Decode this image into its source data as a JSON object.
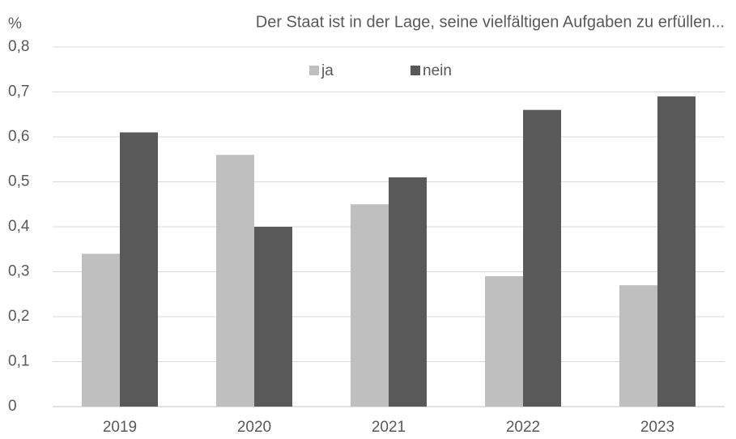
{
  "chart_data": {
    "type": "bar",
    "title": "Der Staat ist in der Lage, seine vielfältigen Aufgaben zu erfüllen...",
    "y_label": "%",
    "categories": [
      "2019",
      "2020",
      "2021",
      "2022",
      "2023"
    ],
    "series": [
      {
        "name": "ja",
        "color": "#bfbfbf",
        "values": [
          0.34,
          0.56,
          0.45,
          0.29,
          0.27
        ]
      },
      {
        "name": "nein",
        "color": "#595959",
        "values": [
          0.61,
          0.4,
          0.51,
          0.66,
          0.69
        ]
      }
    ],
    "ylim": [
      0,
      0.8
    ],
    "yticks": [
      0,
      {
        "value": 0.1,
        "label": "0,1"
      },
      {
        "value": 0.2,
        "label": "0,2"
      },
      {
        "value": 0.3,
        "label": "0,3"
      },
      {
        "value": 0.4,
        "label": "0,4"
      },
      {
        "value": 0.5,
        "label": "0,5"
      },
      {
        "value": 0.6,
        "label": "0,6"
      },
      {
        "value": 0.7,
        "label": "0,7"
      },
      {
        "value": 0.8,
        "label": "0,8"
      }
    ],
    "grid": true,
    "legend": "top"
  }
}
